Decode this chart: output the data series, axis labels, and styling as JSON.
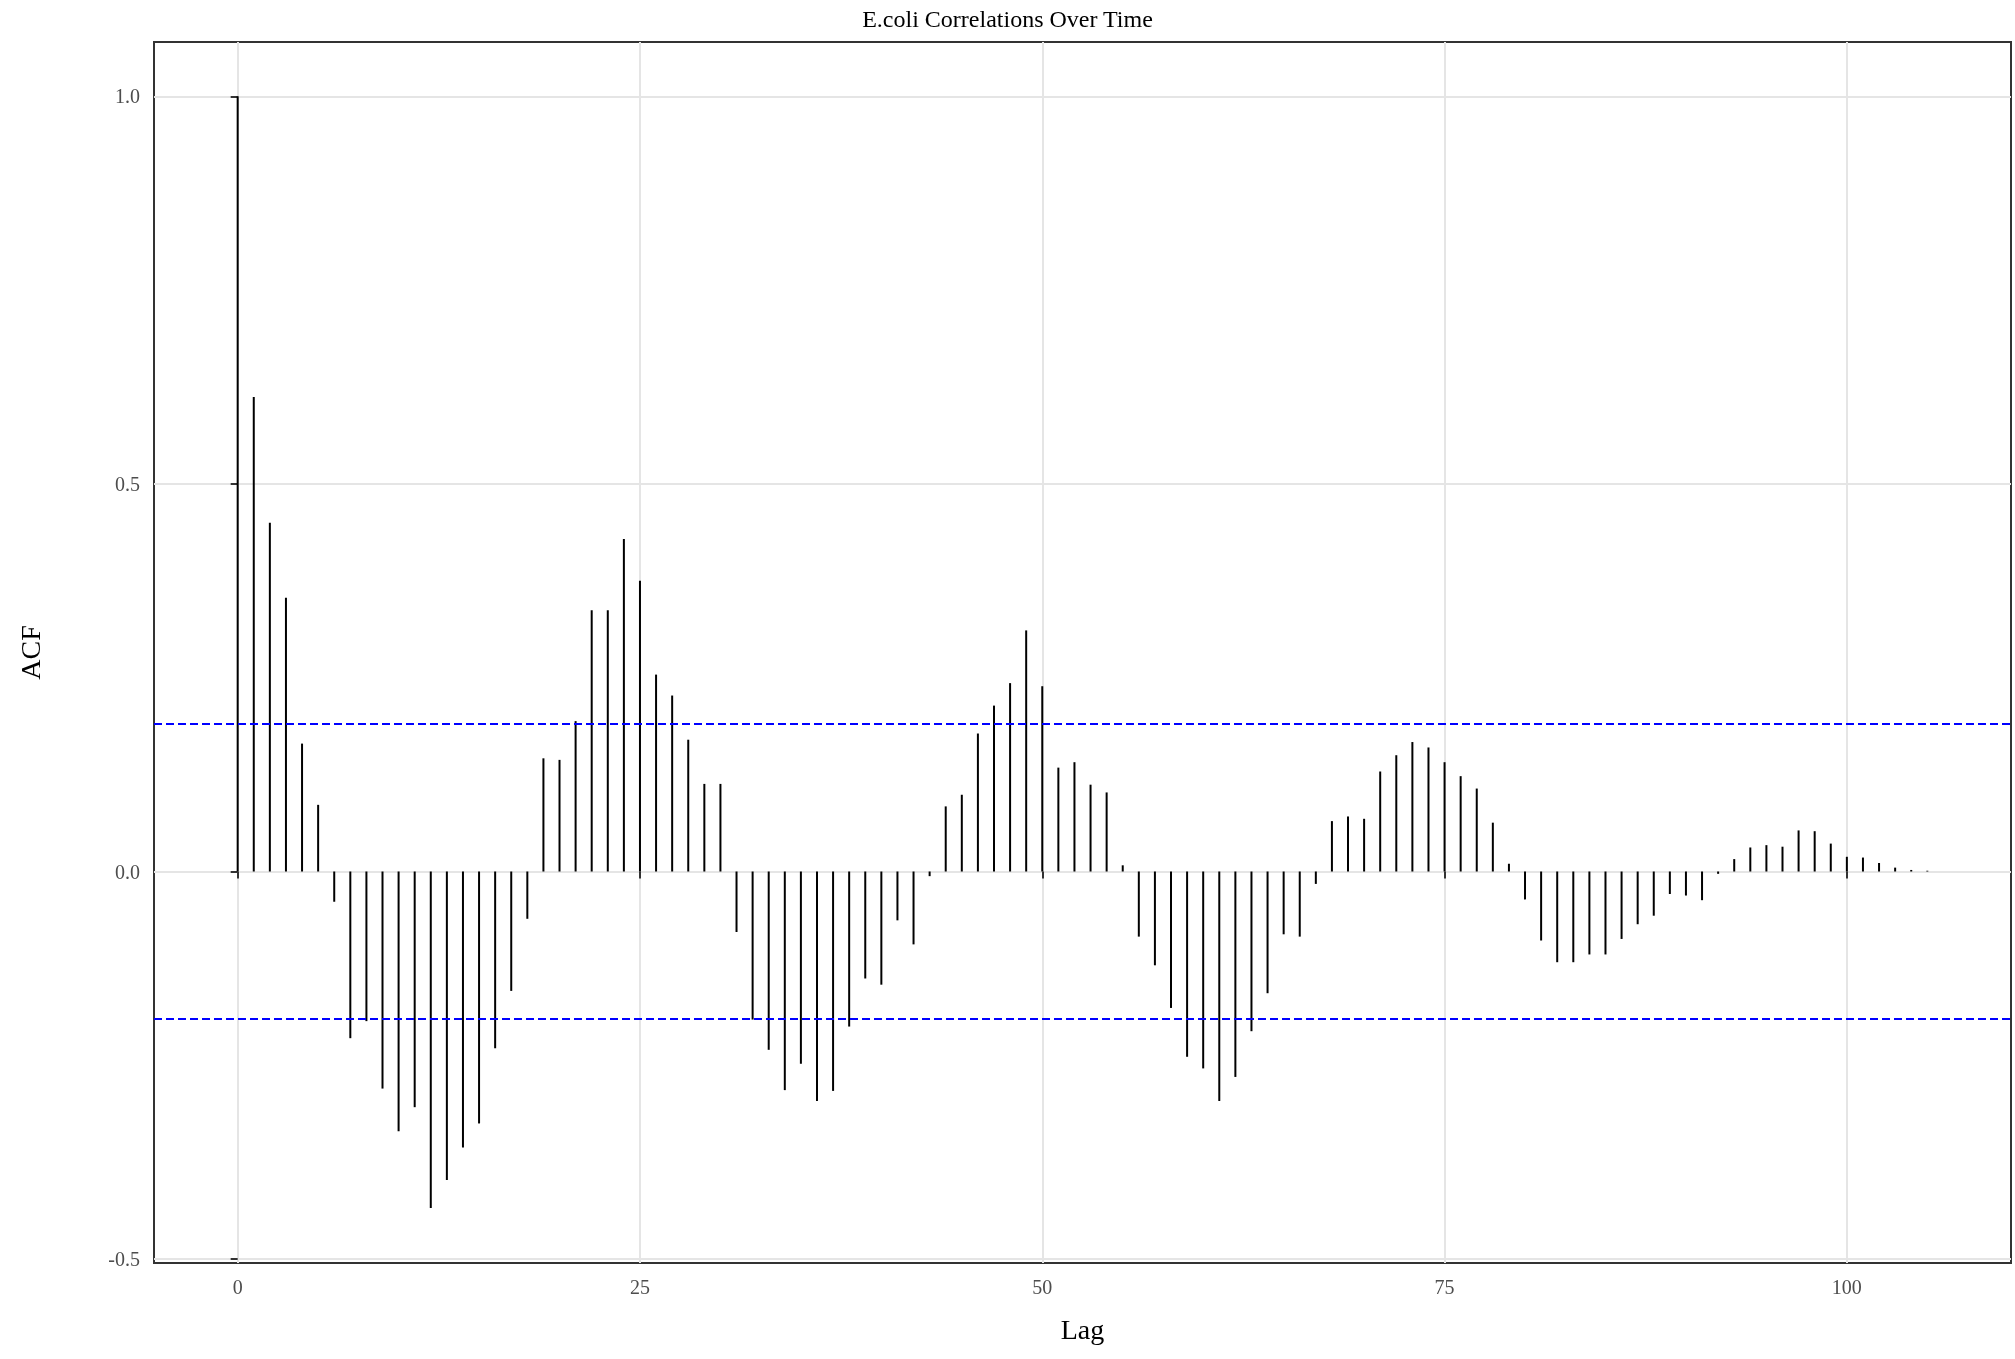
{
  "chart_data": {
    "type": "bar",
    "title": "E.coli Correlations Over Time",
    "xlabel": "Lag",
    "ylabel": "ACF",
    "x": [
      0,
      1,
      2,
      3,
      4,
      5,
      6,
      7,
      8,
      9,
      10,
      11,
      12,
      13,
      14,
      15,
      16,
      17,
      18,
      19,
      20,
      21,
      22,
      23,
      24,
      25,
      26,
      27,
      28,
      29,
      30,
      31,
      32,
      33,
      34,
      35,
      36,
      37,
      38,
      39,
      40,
      41,
      42,
      43,
      44,
      45,
      46,
      47,
      48,
      49,
      50,
      51,
      52,
      53,
      54,
      55,
      56,
      57,
      58,
      59,
      60,
      61,
      62,
      63,
      64,
      65,
      66,
      67,
      68,
      69,
      70,
      71,
      72,
      73,
      74,
      75,
      76,
      77,
      78,
      79,
      80,
      81,
      82,
      83,
      84,
      85,
      86,
      87,
      88,
      89,
      90,
      91,
      92,
      93,
      94,
      95,
      96,
      97,
      98,
      99,
      100,
      101,
      102,
      103,
      104,
      105
    ],
    "values": [
      1.0,
      0.612,
      0.45,
      0.353,
      0.165,
      0.086,
      -0.039,
      -0.215,
      -0.193,
      -0.28,
      -0.335,
      -0.304,
      -0.434,
      -0.398,
      -0.356,
      -0.325,
      -0.228,
      -0.154,
      -0.061,
      0.146,
      0.144,
      0.194,
      0.337,
      0.337,
      0.429,
      0.375,
      0.254,
      0.227,
      0.17,
      0.113,
      0.113,
      -0.078,
      -0.191,
      -0.23,
      -0.282,
      -0.248,
      -0.296,
      -0.283,
      -0.2,
      -0.138,
      -0.146,
      -0.063,
      -0.094,
      -0.006,
      0.084,
      0.099,
      0.178,
      0.214,
      0.243,
      0.311,
      0.239,
      0.134,
      0.141,
      0.112,
      0.102,
      0.008,
      -0.084,
      -0.121,
      -0.176,
      -0.239,
      -0.254,
      -0.296,
      -0.265,
      -0.206,
      -0.157,
      -0.081,
      -0.084,
      -0.016,
      0.065,
      0.071,
      0.068,
      0.129,
      0.15,
      0.167,
      0.16,
      0.141,
      0.123,
      0.107,
      0.063,
      0.01,
      -0.036,
      -0.089,
      -0.117,
      -0.117,
      -0.107,
      -0.107,
      -0.087,
      -0.068,
      -0.057,
      -0.029,
      -0.031,
      -0.037,
      -0.003,
      0.016,
      0.031,
      0.034,
      0.032,
      0.053,
      0.052,
      0.036,
      0.019,
      0.018,
      0.011,
      0.005,
      0.002,
      0.001
    ],
    "color": "#000000",
    "xlim": [
      -5.2,
      110.2
    ],
    "xticks": [
      0,
      25,
      50,
      75,
      100
    ],
    "ylim": [
      -0.505,
      1.07
    ],
    "yticks": [
      {
        "value": -0.5,
        "label": "-0.5"
      },
      {
        "value": 0,
        "label": "0.0"
      },
      {
        "value": 0.5,
        "label": "0.5"
      },
      {
        "value": 1,
        "label": "1.0"
      }
    ],
    "ref_lines": [
      {
        "axis": "y",
        "value": 0.191,
        "color": "#0000ff",
        "line_style": "dashed"
      },
      {
        "axis": "y",
        "value": -0.191,
        "color": "#0000ff",
        "line_style": "dashed"
      }
    ],
    "grid": true
  }
}
